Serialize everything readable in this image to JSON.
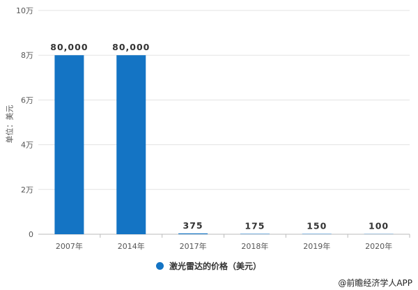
{
  "chart_data": {
    "type": "bar",
    "categories": [
      "2007年",
      "2014年",
      "2017年",
      "2018年",
      "2019年",
      "2020年"
    ],
    "series": [
      {
        "name": "激光雷达的价格（美元）",
        "values": [
          80000,
          80000,
          375,
          175,
          150,
          100
        ]
      }
    ],
    "data_labels": [
      "80,000",
      "80,000",
      "375",
      "175",
      "150",
      "100"
    ],
    "ylabel": "单位：美元",
    "ylim": [
      0,
      100000
    ],
    "yticks": [
      0,
      20000,
      40000,
      60000,
      80000,
      100000
    ],
    "ytick_labels": [
      "0",
      "2万",
      "4万",
      "6万",
      "8万",
      "10万"
    ],
    "grid": true,
    "legend": "bottom",
    "color": "#1474c4"
  },
  "credit": "@前瞻经济学人APP"
}
